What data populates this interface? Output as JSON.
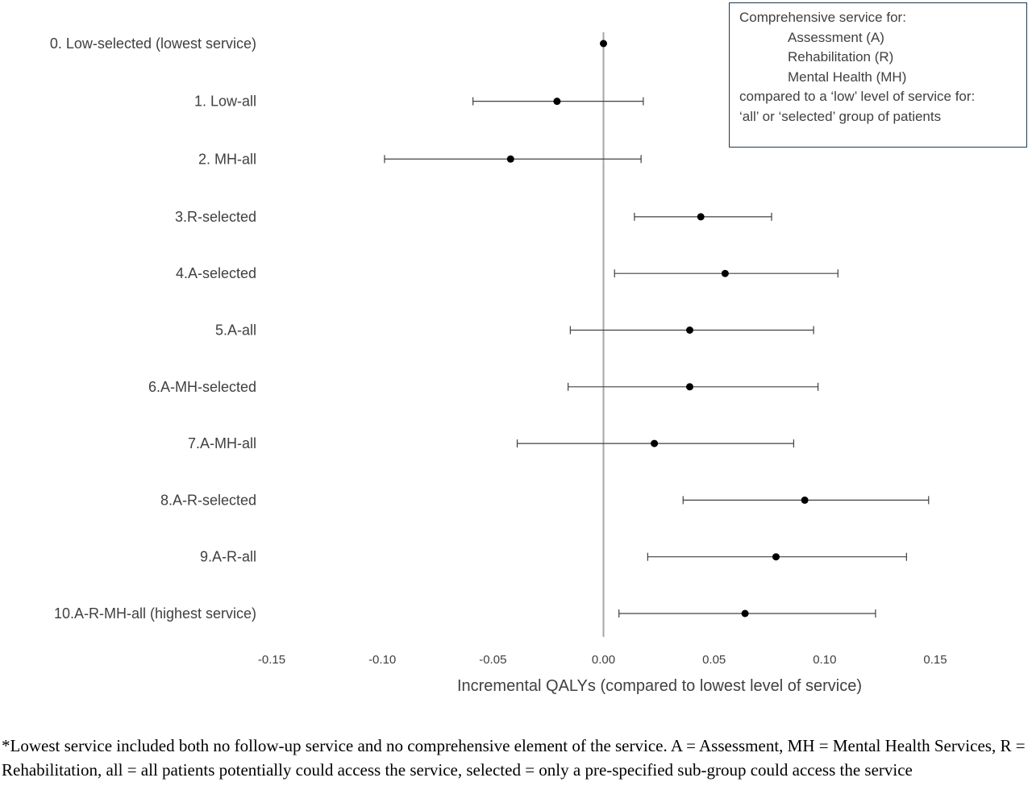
{
  "chart_data": {
    "type": "scatter",
    "subtype": "forest-plot-with-error-bars",
    "categories": [
      "0. Low-selected (lowest service)",
      "1. Low-all",
      "2. MH-all",
      "3.R-selected",
      "4.A-selected",
      "5.A-all",
      "6.A-MH-selected",
      "7.A-MH-all",
      "8.A-R-selected",
      "9.A-R-all",
      "10.A-R-MH-all (highest service)"
    ],
    "values": [
      0.0,
      -0.021,
      -0.042,
      0.044,
      0.055,
      0.039,
      0.039,
      0.023,
      0.091,
      0.078,
      0.064
    ],
    "lower": [
      0.0,
      -0.059,
      -0.099,
      0.014,
      0.005,
      -0.015,
      -0.016,
      -0.039,
      0.036,
      0.02,
      0.007
    ],
    "upper": [
      0.0,
      0.018,
      0.017,
      0.076,
      0.106,
      0.095,
      0.097,
      0.086,
      0.147,
      0.137,
      0.123
    ],
    "xlabel": "Incremental QALYs (compared to lowest level of service)",
    "ylabel": "",
    "xlim": [
      -0.15,
      0.15
    ],
    "xticks": [
      -0.15,
      -0.1,
      -0.05,
      0.0,
      0.05,
      0.1,
      0.15
    ],
    "xtick_labels": [
      "-0.15",
      "-0.10",
      "-0.05",
      "0.00",
      "0.05",
      "0.10",
      "0.15"
    ],
    "reference_line_x": 0.0,
    "grid": false,
    "legend_placement": "top-right"
  },
  "legend_box": {
    "line1": "Comprehensive service for:",
    "line2": "Assessment (A)",
    "line3": "Rehabilitation (R)",
    "line4": "Mental Health (MH)",
    "line5": "compared to a ‘low’ level of service for:",
    "line6": "‘all’ or ‘selected’ group of patients"
  },
  "footnote": "*Lowest service included both no follow-up service and no comprehensive element of the service. A = Assessment, MH = Mental Health Services, R = Rehabilitation, all = all patients potentially could access the service, selected = only a pre-specified sub-group could access the service",
  "colors": {
    "points": "#000000",
    "error_bars": "#404040",
    "reference_line": "#a6a6a6",
    "legend_border": "#1f3a4d"
  }
}
